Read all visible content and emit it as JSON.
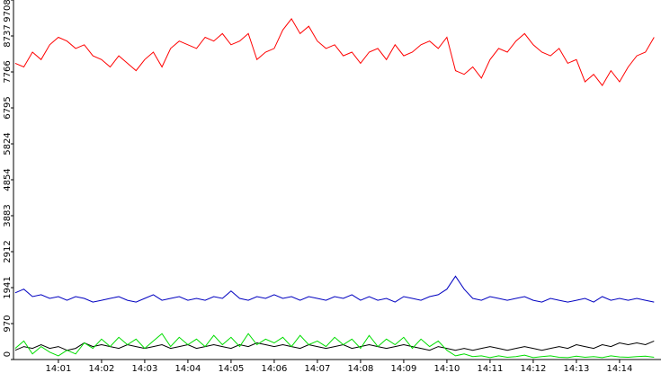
{
  "chart_data": {
    "type": "line",
    "x": [
      0,
      0.2,
      0.4,
      0.6,
      0.8,
      1,
      1.2,
      1.4,
      1.6,
      1.8,
      2,
      2.2,
      2.4,
      2.6,
      2.8,
      3,
      3.2,
      3.4,
      3.6,
      3.8,
      4,
      4.2,
      4.4,
      4.6,
      4.8,
      5,
      5.2,
      5.4,
      5.6,
      5.8,
      6,
      6.2,
      6.4,
      6.6,
      6.8,
      7,
      7.2,
      7.4,
      7.6,
      7.8,
      8,
      8.2,
      8.4,
      8.6,
      8.8,
      9,
      9.2,
      9.4,
      9.6,
      9.8,
      10,
      10.2,
      10.4,
      10.6,
      10.8,
      11,
      11.2,
      11.4,
      11.6,
      11.8,
      12,
      12.2,
      12.4,
      12.6,
      12.8,
      13,
      13.2,
      13.4,
      13.6,
      13.8,
      14,
      14.2,
      14.4,
      14.6,
      14.8
    ],
    "xlim": [
      -0.04,
      14.96
    ],
    "xticks": [
      {
        "value": 1,
        "label": "14:01"
      },
      {
        "value": 2,
        "label": "14:02"
      },
      {
        "value": 3,
        "label": "14:03"
      },
      {
        "value": 4,
        "label": "14:04"
      },
      {
        "value": 5,
        "label": "14:05"
      },
      {
        "value": 6,
        "label": "14:06"
      },
      {
        "value": 7,
        "label": "14:07"
      },
      {
        "value": 8,
        "label": "14:08"
      },
      {
        "value": 9,
        "label": "14:09"
      },
      {
        "value": 10,
        "label": "14:10"
      },
      {
        "value": 11,
        "label": "14:11"
      },
      {
        "value": 12,
        "label": "14:12"
      },
      {
        "value": 13,
        "label": "14:13"
      },
      {
        "value": 14,
        "label": "14:14"
      }
    ],
    "ylim": [
      0,
      9708
    ],
    "yticks": [
      0,
      970,
      1941,
      2912,
      3883,
      4854,
      5824,
      6795,
      7766,
      8737,
      9708
    ],
    "series": [
      {
        "color": "#ff0000",
        "values": [
          8000,
          7900,
          8300,
          8100,
          8500,
          8700,
          8600,
          8400,
          8500,
          8200,
          8100,
          7900,
          8200,
          8000,
          7800,
          8100,
          8300,
          7900,
          8400,
          8600,
          8500,
          8400,
          8700,
          8600,
          8800,
          8500,
          8600,
          8800,
          8100,
          8300,
          8400,
          8900,
          9200,
          8800,
          9000,
          8600,
          8400,
          8500,
          8200,
          8300,
          8000,
          8300,
          8400,
          8100,
          8500,
          8200,
          8300,
          8500,
          8600,
          8400,
          8700,
          7800,
          7700,
          7900,
          7600,
          8100,
          8400,
          8300,
          8600,
          8800,
          8500,
          8300,
          8200,
          8400,
          8000,
          8100,
          7500,
          7700,
          7400,
          7800,
          7500,
          7900,
          8200,
          8300,
          8700
        ]
      },
      {
        "color": "#0000c0",
        "values": [
          1800,
          1900,
          1700,
          1750,
          1650,
          1700,
          1600,
          1700,
          1650,
          1550,
          1600,
          1650,
          1700,
          1600,
          1550,
          1650,
          1750,
          1600,
          1650,
          1700,
          1600,
          1650,
          1600,
          1700,
          1650,
          1850,
          1650,
          1600,
          1700,
          1650,
          1750,
          1650,
          1700,
          1600,
          1700,
          1650,
          1600,
          1700,
          1650,
          1750,
          1600,
          1700,
          1600,
          1650,
          1550,
          1700,
          1650,
          1600,
          1700,
          1750,
          1900,
          2250,
          1900,
          1650,
          1600,
          1700,
          1650,
          1600,
          1650,
          1700,
          1600,
          1550,
          1650,
          1600,
          1550,
          1600,
          1650,
          1550,
          1700,
          1600,
          1650,
          1600,
          1650,
          1600,
          1550
        ]
      },
      {
        "color": "#000000",
        "values": [
          250,
          350,
          300,
          400,
          300,
          350,
          250,
          300,
          450,
          350,
          400,
          350,
          300,
          400,
          350,
          300,
          350,
          400,
          300,
          350,
          400,
          300,
          350,
          400,
          350,
          300,
          400,
          350,
          450,
          400,
          350,
          400,
          350,
          300,
          400,
          350,
          300,
          350,
          400,
          300,
          350,
          400,
          350,
          300,
          350,
          400,
          350,
          300,
          250,
          350,
          300,
          250,
          300,
          250,
          300,
          350,
          300,
          250,
          300,
          350,
          300,
          250,
          300,
          350,
          300,
          400,
          350,
          300,
          400,
          350,
          450,
          400,
          450,
          400,
          500
        ]
      },
      {
        "color": "#00dd00",
        "values": [
          300,
          500,
          150,
          350,
          200,
          100,
          250,
          150,
          450,
          300,
          550,
          350,
          600,
          400,
          550,
          300,
          500,
          700,
          350,
          600,
          400,
          550,
          350,
          650,
          400,
          600,
          350,
          700,
          400,
          550,
          450,
          600,
          350,
          650,
          400,
          500,
          350,
          600,
          400,
          550,
          300,
          650,
          350,
          550,
          400,
          600,
          300,
          550,
          350,
          500,
          250,
          100,
          150,
          80,
          100,
          50,
          100,
          60,
          80,
          120,
          50,
          80,
          100,
          60,
          50,
          90,
          60,
          80,
          50,
          100,
          70,
          60,
          80,
          90,
          60
        ]
      }
    ]
  }
}
